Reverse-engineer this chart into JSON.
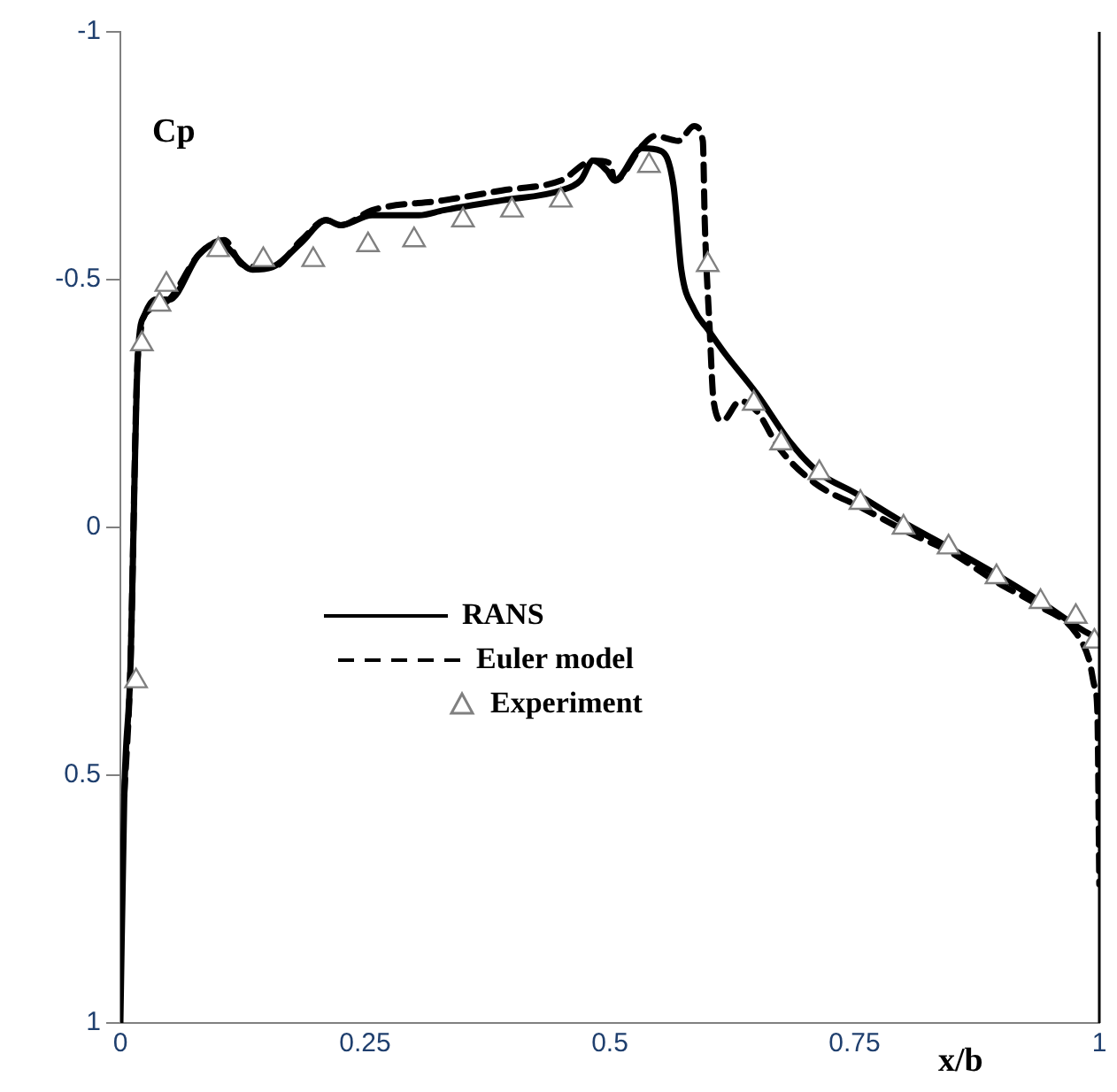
{
  "chart_data": {
    "type": "line",
    "xlabel": "x/b",
    "ylabel": "Cp",
    "xlim": [
      0,
      1
    ],
    "xticks": [
      0,
      0.25,
      0.5,
      0.75,
      1
    ],
    "ylim": [
      1,
      -1
    ],
    "yticks": [
      -1,
      -0.5,
      0,
      0.5,
      1
    ],
    "grid": false,
    "legend": "left",
    "series": [
      {
        "name": "RANS",
        "color": "#000000",
        "line_style": "solid",
        "marker": "none",
        "x": [
          0,
          0.004,
          0.01,
          0.018,
          0.025,
          0.036,
          0.05,
          0.08,
          0.1,
          0.135,
          0.155,
          0.185,
          0.21,
          0.225,
          0.257,
          0.305,
          0.33,
          0.39,
          0.45,
          0.47,
          0.483,
          0.497,
          0.505,
          0.533,
          0.552,
          0.565,
          0.573,
          0.586,
          0.6,
          0.618,
          0.65,
          0.685,
          0.714,
          0.75,
          0.8,
          0.846,
          0.895,
          0.94,
          0.985,
          0.995
        ],
        "values": [
          1,
          0.54,
          0.3,
          -0.35,
          -0.43,
          -0.46,
          -0.46,
          -0.55,
          -0.575,
          -0.52,
          -0.525,
          -0.575,
          -0.62,
          -0.61,
          -0.63,
          -0.63,
          -0.64,
          -0.66,
          -0.68,
          -0.7,
          -0.74,
          -0.72,
          -0.7,
          -0.765,
          -0.76,
          -0.69,
          -0.52,
          -0.44,
          -0.4,
          -0.35,
          -0.27,
          -0.17,
          -0.11,
          -0.07,
          -0.01,
          0.04,
          0.095,
          0.15,
          0.21,
          0.22
        ]
      },
      {
        "name": "Euler model",
        "color": "#000000",
        "line_style": "dashed",
        "marker": "none",
        "x": [
          0.004,
          0.01,
          0.018,
          0.03,
          0.05,
          0.08,
          0.106,
          0.125,
          0.155,
          0.185,
          0.21,
          0.225,
          0.257,
          0.33,
          0.39,
          0.45,
          0.483,
          0.5,
          0.505,
          0.533,
          0.546,
          0.57,
          0.586,
          0.595,
          0.597,
          0.602,
          0.606,
          0.615,
          0.633,
          0.65,
          0.673,
          0.709,
          0.757,
          0.805,
          0.848,
          0.895,
          0.94,
          0.975,
          0.99,
          0.995,
          0.998,
          1
        ],
        "values": [
          0.54,
          0.3,
          -0.35,
          -0.44,
          -0.46,
          -0.55,
          -0.58,
          -0.53,
          -0.525,
          -0.58,
          -0.62,
          -0.61,
          -0.64,
          -0.66,
          -0.68,
          -0.7,
          -0.74,
          -0.735,
          -0.7,
          -0.77,
          -0.79,
          -0.78,
          -0.81,
          -0.78,
          -0.615,
          -0.4,
          -0.255,
          -0.215,
          -0.255,
          -0.235,
          -0.16,
          -0.09,
          -0.04,
          0.01,
          0.05,
          0.11,
          0.16,
          0.21,
          0.27,
          0.32,
          0.37,
          0.72
        ]
      },
      {
        "name": "Experiment",
        "type": "scatter",
        "color": "#808080",
        "marker": "triangle",
        "x": [
          0.016,
          0.022,
          0.04,
          0.047,
          0.1,
          0.146,
          0.197,
          0.253,
          0.3,
          0.35,
          0.4,
          0.45,
          0.54,
          0.6,
          0.647,
          0.675,
          0.714,
          0.756,
          0.8,
          0.846,
          0.895,
          0.94,
          0.976,
          0.995
        ],
        "values": [
          0.31,
          -0.37,
          -0.45,
          -0.49,
          -0.56,
          -0.54,
          -0.54,
          -0.57,
          -0.58,
          -0.62,
          -0.64,
          -0.66,
          -0.73,
          -0.53,
          -0.25,
          -0.17,
          -0.11,
          -0.05,
          0,
          0.04,
          0.1,
          0.15,
          0.18,
          0.23
        ]
      }
    ]
  }
}
